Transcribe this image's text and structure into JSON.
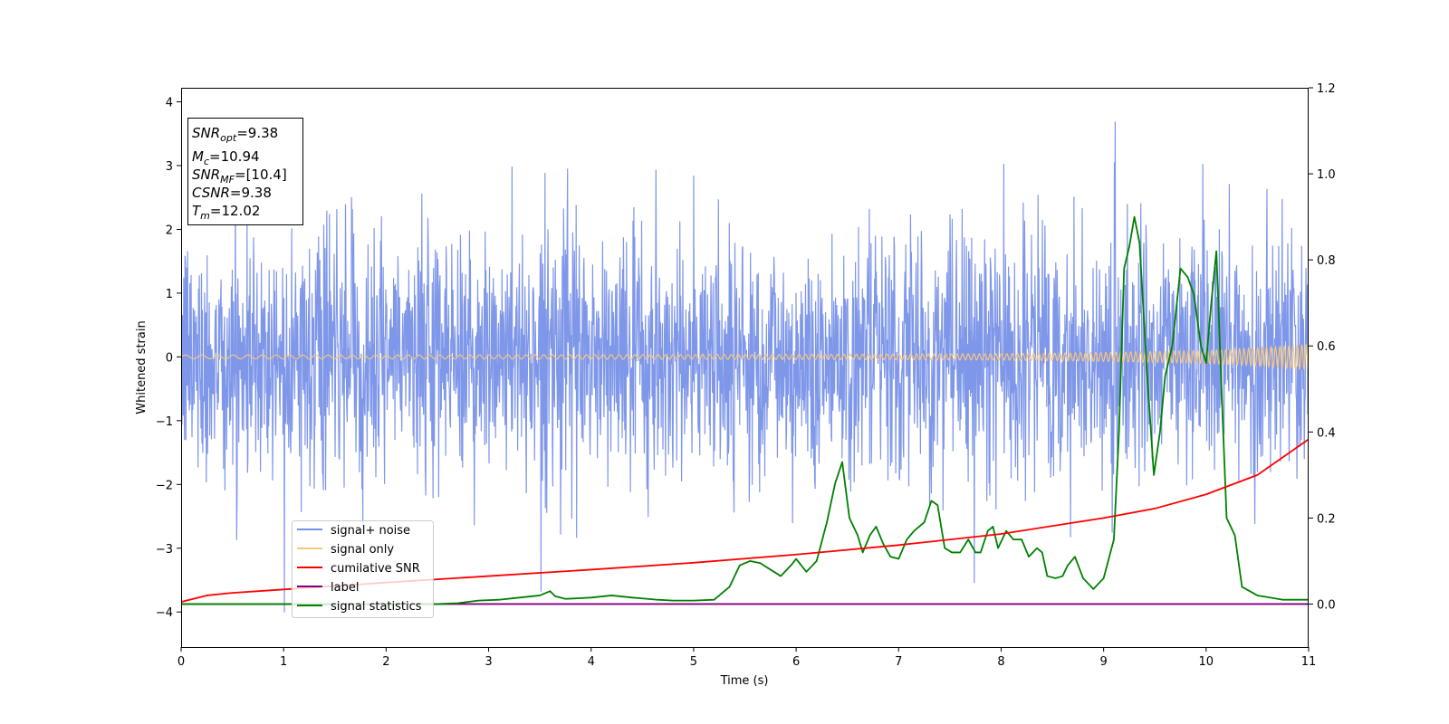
{
  "chart_data": {
    "type": "line",
    "xlabel": "Time (s)",
    "ylabel": "Whitened strain",
    "xlim": [
      0,
      11
    ],
    "ylim_left": [
      -4.55,
      4.22
    ],
    "ylim_right": [
      -0.1,
      1.2
    ],
    "x_ticks": [
      "0",
      "1",
      "2",
      "3",
      "4",
      "5",
      "6",
      "7",
      "8",
      "9",
      "10",
      "11"
    ],
    "y_left_ticks": [
      "−4",
      "−3",
      "−2",
      "−1",
      "0",
      "1",
      "2",
      "3",
      "4"
    ],
    "y_right_ticks": [
      "0.0",
      "0.2",
      "0.4",
      "0.6",
      "0.8",
      "1.0",
      "1.2"
    ],
    "grid": false,
    "legend_position": "lower-left",
    "info_box": {
      "snr_opt": {
        "base": "SNR",
        "sub": "opt",
        "value": "=9.38"
      },
      "mc": {
        "base": "M",
        "sub": "c",
        "value": "=10.94"
      },
      "snr_mf": {
        "base": "SNR",
        "sub": "MF",
        "value": "=[10.4]"
      },
      "csnr": {
        "base": "CSNR",
        "value": "=9.38"
      },
      "tm": {
        "base": "T",
        "sub": "m",
        "value": "=12.02"
      }
    },
    "series": [
      {
        "name": "signal+ noise",
        "axis": "left",
        "color": "#7891e8",
        "note_range": [
          -4.2,
          3.8
        ],
        "envelope": {
          "x": [
            0,
            2,
            4,
            6,
            8,
            10,
            11
          ],
          "typical_high": [
            2.2,
            2.2,
            2.2,
            2.2,
            2.3,
            2.3,
            2.3
          ],
          "typical_low": [
            -2.1,
            -2.1,
            -2.1,
            -2.1,
            -2.2,
            -2.2,
            -2.2
          ]
        }
      },
      {
        "name": "signal only",
        "axis": "left",
        "color": "#f5c77e",
        "amplitude": {
          "x": [
            0,
            2,
            4,
            6,
            8,
            9,
            10,
            10.5,
            11
          ],
          "values": [
            0.03,
            0.03,
            0.035,
            0.04,
            0.05,
            0.07,
            0.1,
            0.14,
            0.2
          ]
        }
      },
      {
        "name": "cumilative SNR",
        "axis": "right",
        "color": "#ff0000",
        "x": [
          0,
          0.25,
          0.5,
          1,
          2,
          3,
          4,
          5,
          6,
          7,
          8,
          9,
          9.5,
          10,
          10.5,
          11
        ],
        "values": [
          0.005,
          0.02,
          0.026,
          0.034,
          0.05,
          0.065,
          0.08,
          0.096,
          0.115,
          0.137,
          0.163,
          0.2,
          0.222,
          0.255,
          0.3,
          0.383
        ]
      },
      {
        "name": "label",
        "axis": "right",
        "color": "#800080",
        "x": [
          0,
          11
        ],
        "values": [
          0,
          0
        ]
      },
      {
        "name": "signal statistics",
        "axis": "right",
        "color": "#008000",
        "x": [
          0,
          0.5,
          1,
          1.5,
          2,
          2.5,
          2.7,
          2.9,
          3.1,
          3.3,
          3.5,
          3.6,
          3.65,
          3.75,
          4,
          4.2,
          4.4,
          4.5,
          4.65,
          4.8,
          5,
          5.2,
          5.35,
          5.45,
          5.55,
          5.65,
          5.75,
          5.85,
          5.95,
          6,
          6.05,
          6.1,
          6.2,
          6.3,
          6.38,
          6.45,
          6.52,
          6.6,
          6.65,
          6.72,
          6.78,
          6.85,
          6.92,
          7,
          7.08,
          7.15,
          7.25,
          7.32,
          7.38,
          7.45,
          7.52,
          7.6,
          7.68,
          7.75,
          7.8,
          7.87,
          7.92,
          7.97,
          8.05,
          8.12,
          8.2,
          8.27,
          8.35,
          8.4,
          8.45,
          8.53,
          8.6,
          8.65,
          8.72,
          8.8,
          8.9,
          9,
          9.1,
          9.15,
          9.2,
          9.25,
          9.3,
          9.35,
          9.42,
          9.49,
          9.55,
          9.6,
          9.67,
          9.75,
          9.82,
          9.88,
          9.95,
          10,
          10.05,
          10.1,
          10.15,
          10.2,
          10.28,
          10.35,
          10.5,
          10.75,
          11
        ],
        "values": [
          0.0,
          0.0,
          0.0,
          0.0,
          0.0,
          0.0,
          0.002,
          0.008,
          0.01,
          0.015,
          0.02,
          0.03,
          0.018,
          0.012,
          0.015,
          0.02,
          0.015,
          0.013,
          0.01,
          0.008,
          0.008,
          0.01,
          0.04,
          0.09,
          0.1,
          0.095,
          0.08,
          0.065,
          0.09,
          0.105,
          0.09,
          0.075,
          0.1,
          0.19,
          0.28,
          0.33,
          0.2,
          0.16,
          0.12,
          0.16,
          0.18,
          0.14,
          0.11,
          0.105,
          0.15,
          0.17,
          0.19,
          0.24,
          0.23,
          0.13,
          0.12,
          0.12,
          0.15,
          0.12,
          0.12,
          0.17,
          0.18,
          0.13,
          0.17,
          0.15,
          0.15,
          0.11,
          0.13,
          0.12,
          0.065,
          0.06,
          0.065,
          0.09,
          0.11,
          0.06,
          0.035,
          0.06,
          0.15,
          0.4,
          0.78,
          0.83,
          0.9,
          0.84,
          0.55,
          0.3,
          0.4,
          0.53,
          0.6,
          0.78,
          0.76,
          0.72,
          0.6,
          0.56,
          0.7,
          0.82,
          0.5,
          0.2,
          0.16,
          0.04,
          0.02,
          0.01,
          0.01
        ]
      }
    ]
  }
}
